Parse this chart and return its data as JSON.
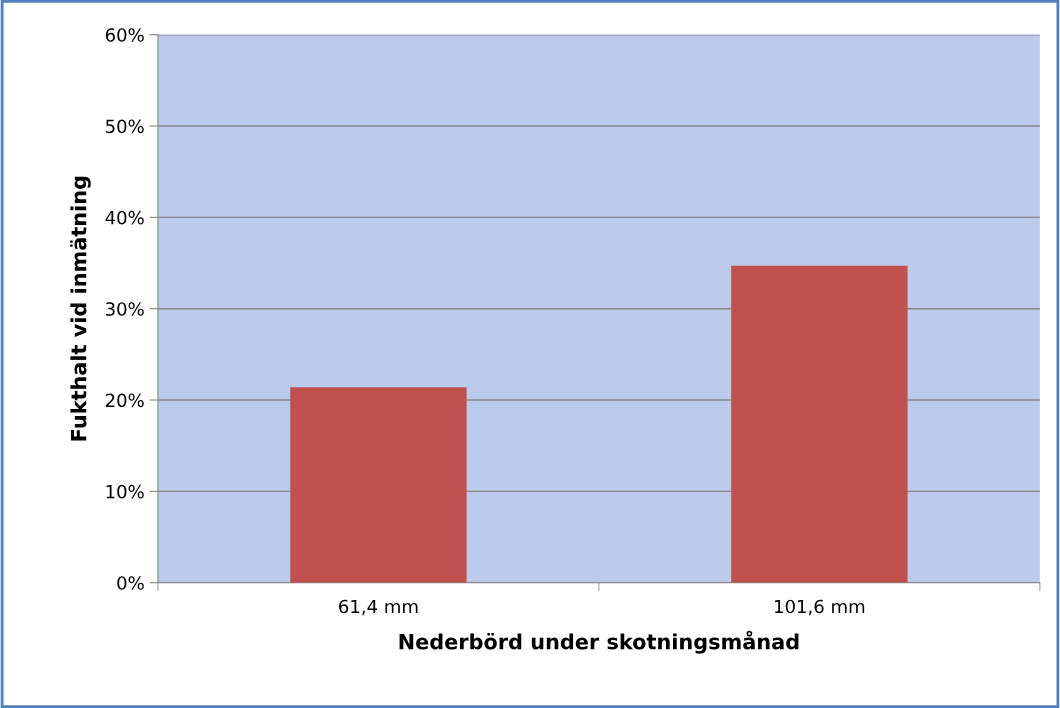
{
  "chart_data": {
    "type": "bar",
    "xlabel": "Nederbörd under skotningsmånad",
    "ylabel": "Fukthalt vid inmätning",
    "categories": [
      "61,4 mm",
      "101,6 mm"
    ],
    "values": [
      21.4,
      34.7
    ],
    "color": "#c0504d",
    "ylim": [
      0,
      60
    ],
    "yticks": [
      {
        "value": 0,
        "label": "0%"
      },
      {
        "value": 10,
        "label": "10%"
      },
      {
        "value": 20,
        "label": "20%"
      },
      {
        "value": 30,
        "label": "30%"
      },
      {
        "value": 40,
        "label": "40%"
      },
      {
        "value": 50,
        "label": "50%"
      },
      {
        "value": 60,
        "label": "60%"
      }
    ],
    "grid": "y",
    "legend": false
  }
}
